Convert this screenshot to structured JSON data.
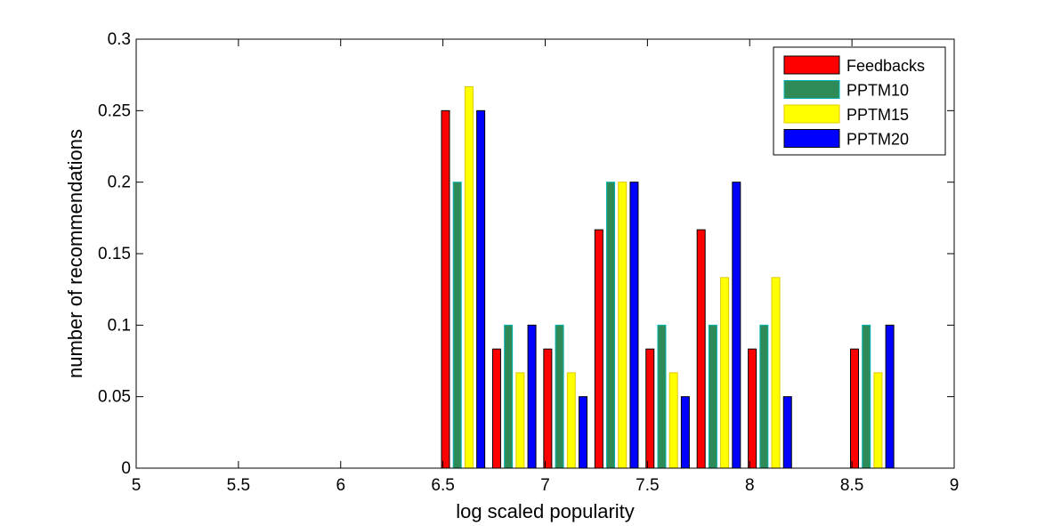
{
  "chart_data": {
    "type": "bar",
    "title": "",
    "xlabel": "log scaled popularity",
    "ylabel": "number of recommendations",
    "xlim": [
      5,
      9
    ],
    "ylim": [
      0,
      0.3
    ],
    "xticks": [
      "5",
      "5.5",
      "6",
      "6.5",
      "7",
      "7.5",
      "8",
      "8.5",
      "9"
    ],
    "yticks": [
      "0",
      "0.05",
      "0.1",
      "0.15",
      "0.2",
      "0.25",
      "0.3"
    ],
    "grid": false,
    "legend_position": "top-right",
    "bin_centers": [
      5.1,
      5.35,
      5.6,
      5.85,
      6.1,
      6.35,
      6.6,
      6.85,
      7.1,
      7.35,
      7.6,
      7.85,
      8.1,
      8.35,
      8.6,
      8.85
    ],
    "series": [
      {
        "name": "Feedbacks",
        "color": "#ff0000",
        "stroke": "#000000",
        "values": [
          0,
          0,
          0,
          0,
          0,
          0,
          0.25,
          0.0833,
          0.0833,
          0.1667,
          0.0833,
          0.1667,
          0.0833,
          0,
          0.0833,
          0
        ]
      },
      {
        "name": "PPTM10",
        "color": "#2e8b57",
        "stroke": "#00b3b3",
        "values": [
          0,
          0,
          0,
          0,
          0,
          0,
          0.2,
          0.1,
          0.1,
          0.2,
          0.1,
          0.1,
          0.1,
          0,
          0.1,
          0
        ]
      },
      {
        "name": "PPTM15",
        "color": "#ffff00",
        "stroke": "#e0c800",
        "values": [
          0,
          0,
          0,
          0,
          0,
          0,
          0.2667,
          0.0667,
          0.0667,
          0.2,
          0.0667,
          0.1333,
          0.1333,
          0,
          0.0667,
          0
        ]
      },
      {
        "name": "PPTM20",
        "color": "#0000ff",
        "stroke": "#000000",
        "values": [
          0,
          0,
          0,
          0,
          0,
          0,
          0.25,
          0.1,
          0.05,
          0.2,
          0.05,
          0.2,
          0.05,
          0,
          0.1,
          0
        ]
      }
    ]
  }
}
